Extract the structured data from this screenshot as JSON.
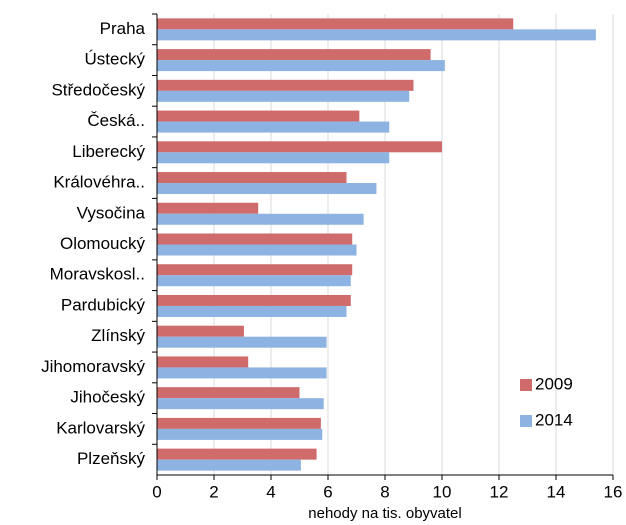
{
  "chart_data": {
    "type": "barh",
    "categories": [
      "Praha",
      "Ústecký",
      "Středočeský",
      "Česká..",
      "Liberecký",
      "Královéhra..",
      "Vysočina",
      "Olomoucký",
      "Moravskosl..",
      "Pardubický",
      "Zlínský",
      "Jihomoravský",
      "Jihočeský",
      "Karlovarský",
      "Plzeňský"
    ],
    "series": [
      {
        "name": "2009",
        "color": "#d06b6b",
        "values": [
          12.5,
          9.6,
          9.0,
          7.1,
          10.0,
          6.65,
          3.55,
          6.85,
          6.85,
          6.8,
          3.05,
          3.2,
          5.0,
          5.75,
          5.6
        ]
      },
      {
        "name": "2014",
        "color": "#8db3e2",
        "values": [
          15.4,
          10.1,
          8.85,
          8.15,
          8.15,
          7.7,
          7.25,
          7.0,
          6.8,
          6.65,
          5.95,
          5.95,
          5.85,
          5.8,
          5.05
        ]
      }
    ],
    "xlabel": "nehody na tis. obyvatel",
    "xlim": [
      0,
      16
    ],
    "xticks": [
      0,
      2,
      4,
      6,
      8,
      10,
      12,
      14,
      16
    ],
    "grid": true,
    "legend": "lower right"
  }
}
